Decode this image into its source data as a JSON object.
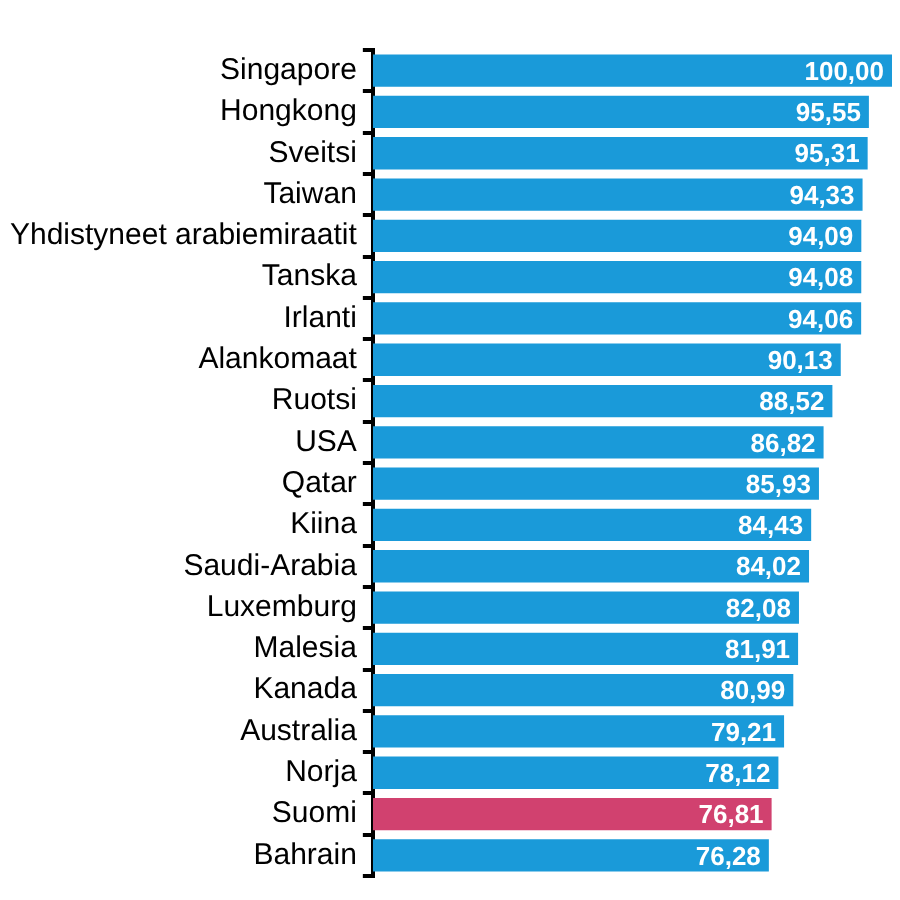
{
  "chart_data": {
    "type": "bar",
    "orientation": "horizontal",
    "categories": [
      "Singapore",
      "Hongkong",
      "Sveitsi",
      "Taiwan",
      "Yhdistyneet arabiemiraatit",
      "Tanska",
      "Irlanti",
      "Alankomaat",
      "Ruotsi",
      "USA",
      "Qatar",
      "Kiina",
      "Saudi-Arabia",
      "Luxemburg",
      "Malesia",
      "Kanada",
      "Australia",
      "Norja",
      "Suomi",
      "Bahrain"
    ],
    "values": [
      100.0,
      95.55,
      95.31,
      94.33,
      94.09,
      94.08,
      94.06,
      90.13,
      88.52,
      86.82,
      85.93,
      84.43,
      84.02,
      82.08,
      81.91,
      80.99,
      79.21,
      78.12,
      76.81,
      76.28
    ],
    "value_labels": [
      "100,00",
      "95,55",
      "95,31",
      "94,33",
      "94,09",
      "94,08",
      "94,06",
      "90,13",
      "88,52",
      "86,82",
      "85,93",
      "84,43",
      "84,02",
      "82,08",
      "81,91",
      "80,99",
      "79,21",
      "78,12",
      "76,81",
      "76,28"
    ],
    "colors": [
      "#1a9ad9",
      "#1a9ad9",
      "#1a9ad9",
      "#1a9ad9",
      "#1a9ad9",
      "#1a9ad9",
      "#1a9ad9",
      "#1a9ad9",
      "#1a9ad9",
      "#1a9ad9",
      "#1a9ad9",
      "#1a9ad9",
      "#1a9ad9",
      "#1a9ad9",
      "#1a9ad9",
      "#1a9ad9",
      "#1a9ad9",
      "#1a9ad9",
      "#d1416f",
      "#1a9ad9"
    ],
    "legend": false,
    "tick_labels": "y"
  }
}
